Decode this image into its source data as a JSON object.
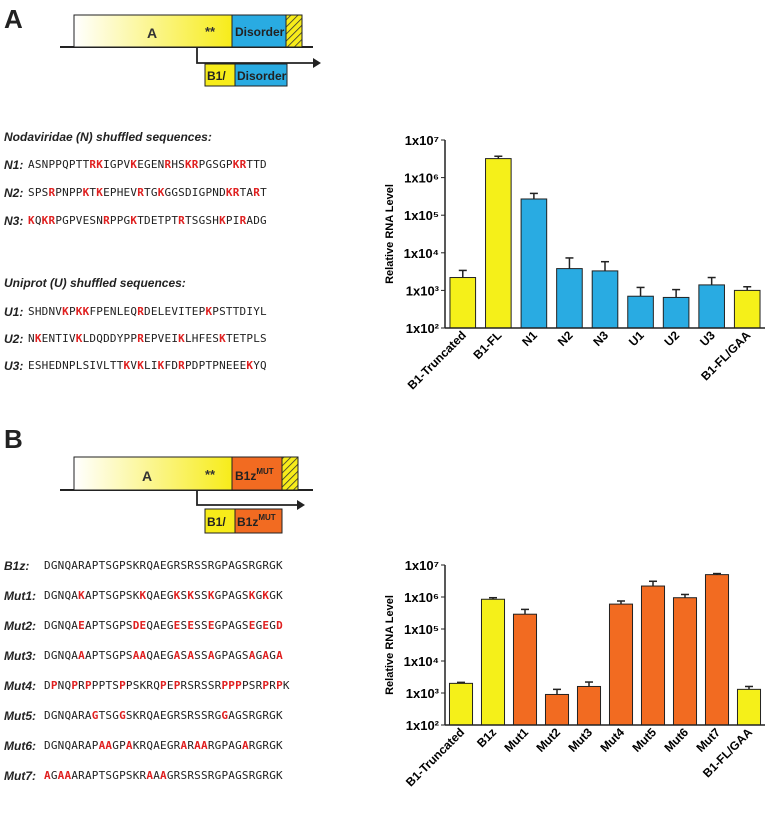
{
  "panel_a": {
    "letter": "A",
    "diagram": {
      "domain_a": "A",
      "stars": "**",
      "disorder": "Disorder",
      "b1_prefix": "B1/",
      "b1_disorder": "Disorder"
    },
    "group1_title": "Nodaviridae (N) shuffled sequences:",
    "group1": [
      {
        "label": "N1:",
        "segments": [
          [
            "ASNPPQPTT",
            0
          ],
          [
            "RK",
            1
          ],
          [
            "IGPV",
            0
          ],
          [
            "K",
            1
          ],
          [
            "EGEN",
            0
          ],
          [
            "R",
            1
          ],
          [
            "HS",
            0
          ],
          [
            "KR",
            1
          ],
          [
            "PGSGP",
            0
          ],
          [
            "KR",
            1
          ],
          [
            "TTD",
            0
          ]
        ]
      },
      {
        "label": "N2:",
        "segments": [
          [
            "SPS",
            0
          ],
          [
            "R",
            1
          ],
          [
            "PNPP",
            0
          ],
          [
            "K",
            1
          ],
          [
            "T",
            0
          ],
          [
            "K",
            1
          ],
          [
            "EPHEV",
            0
          ],
          [
            "R",
            1
          ],
          [
            "TG",
            0
          ],
          [
            "K",
            1
          ],
          [
            "GGSDIGPND",
            0
          ],
          [
            "KR",
            1
          ],
          [
            "TA",
            0
          ],
          [
            "R",
            1
          ],
          [
            "T",
            0
          ]
        ]
      },
      {
        "label": "N3:",
        "segments": [
          [
            "K",
            1
          ],
          [
            "Q",
            0
          ],
          [
            "KR",
            1
          ],
          [
            "PGPVESN",
            0
          ],
          [
            "R",
            1
          ],
          [
            "PPG",
            0
          ],
          [
            "K",
            1
          ],
          [
            "TDETPT",
            0
          ],
          [
            "R",
            1
          ],
          [
            "TSGSH",
            0
          ],
          [
            "K",
            1
          ],
          [
            "PI",
            0
          ],
          [
            "R",
            1
          ],
          [
            "ADG",
            0
          ]
        ]
      }
    ],
    "group2_title": "Uniprot (U) shuffled sequences:",
    "group2": [
      {
        "label": "U1:",
        "segments": [
          [
            "SHDNV",
            0
          ],
          [
            "K",
            1
          ],
          [
            "P",
            0
          ],
          [
            "KK",
            1
          ],
          [
            "FPENLEQ",
            0
          ],
          [
            "R",
            1
          ],
          [
            "DELEVITEP",
            0
          ],
          [
            "K",
            1
          ],
          [
            "PSTTDIYL",
            0
          ]
        ]
      },
      {
        "label": "U2:",
        "segments": [
          [
            "N",
            0
          ],
          [
            "K",
            1
          ],
          [
            "ENTIV",
            0
          ],
          [
            "K",
            1
          ],
          [
            "LDQDDYPP",
            0
          ],
          [
            "R",
            1
          ],
          [
            "EPVEI",
            0
          ],
          [
            "K",
            1
          ],
          [
            "LHFES",
            0
          ],
          [
            "K",
            1
          ],
          [
            "TETPLS",
            0
          ]
        ]
      },
      {
        "label": "U3:",
        "segments": [
          [
            "ESHEDNPLSIVLTT",
            0
          ],
          [
            "K",
            1
          ],
          [
            "V",
            0
          ],
          [
            "K",
            1
          ],
          [
            "LI",
            0
          ],
          [
            "K",
            1
          ],
          [
            "FD",
            0
          ],
          [
            "R",
            1
          ],
          [
            "PDPTPNEEE",
            0
          ],
          [
            "K",
            1
          ],
          [
            "YQ",
            0
          ]
        ]
      }
    ]
  },
  "panel_b": {
    "letter": "B",
    "diagram": {
      "domain_a": "A",
      "stars": "**",
      "b1z": "B1z",
      "mut_sup": "MUT",
      "b1_prefix": "B1/",
      "b1z_bottom": "B1z",
      "mut_sup_bottom": "MUT"
    },
    "rows": [
      {
        "label": "B1z:",
        "segments": [
          [
            "DGNQARAPTSGPSKRQAEGRSRSSRGPAGSRGRGK",
            0
          ]
        ]
      },
      {
        "label": "Mut1:",
        "segments": [
          [
            "DGNQA",
            0
          ],
          [
            "K",
            1
          ],
          [
            "APTSGPSK",
            0
          ],
          [
            "K",
            1
          ],
          [
            "QAEG",
            0
          ],
          [
            "K",
            1
          ],
          [
            "S",
            0
          ],
          [
            "K",
            1
          ],
          [
            "SS",
            0
          ],
          [
            "K",
            1
          ],
          [
            "GPAGS",
            0
          ],
          [
            "K",
            1
          ],
          [
            "G",
            0
          ],
          [
            "K",
            1
          ],
          [
            "GK",
            0
          ]
        ]
      },
      {
        "label": "Mut2:",
        "segments": [
          [
            "DGNQA",
            0
          ],
          [
            "E",
            1
          ],
          [
            "APTSGPS",
            0
          ],
          [
            "DE",
            1
          ],
          [
            "QAEG",
            0
          ],
          [
            "E",
            1
          ],
          [
            "S",
            0
          ],
          [
            "E",
            1
          ],
          [
            "SS",
            0
          ],
          [
            "E",
            1
          ],
          [
            "GPAGS",
            0
          ],
          [
            "E",
            1
          ],
          [
            "G",
            0
          ],
          [
            "E",
            1
          ],
          [
            "G",
            0
          ],
          [
            "D",
            1
          ]
        ]
      },
      {
        "label": "Mut3:",
        "segments": [
          [
            "DGNQA",
            0
          ],
          [
            "A",
            1
          ],
          [
            "APTSGPS",
            0
          ],
          [
            "AA",
            1
          ],
          [
            "QAEG",
            0
          ],
          [
            "A",
            1
          ],
          [
            "S",
            0
          ],
          [
            "A",
            1
          ],
          [
            "SS",
            0
          ],
          [
            "A",
            1
          ],
          [
            "GPAGS",
            0
          ],
          [
            "A",
            1
          ],
          [
            "G",
            0
          ],
          [
            "A",
            1
          ],
          [
            "G",
            0
          ],
          [
            "A",
            1
          ]
        ]
      },
      {
        "label": "Mut4:",
        "segments": [
          [
            "D",
            0
          ],
          [
            "P",
            1
          ],
          [
            "NQ",
            0
          ],
          [
            "P",
            1
          ],
          [
            "R",
            0
          ],
          [
            "P",
            1
          ],
          [
            "PPTS",
            0
          ],
          [
            "P",
            1
          ],
          [
            "PSKRQ",
            0
          ],
          [
            "P",
            1
          ],
          [
            "E",
            0
          ],
          [
            "P",
            1
          ],
          [
            "RSRSSR",
            0
          ],
          [
            "PPP",
            1
          ],
          [
            "PSR",
            0
          ],
          [
            "P",
            1
          ],
          [
            "R",
            0
          ],
          [
            "P",
            1
          ],
          [
            "K",
            0
          ]
        ]
      },
      {
        "label": "Mut5:",
        "segments": [
          [
            "DGNQARA",
            0
          ],
          [
            "G",
            1
          ],
          [
            "TSG",
            0
          ],
          [
            "G",
            1
          ],
          [
            "SKRQAEGRSRSSRG",
            0
          ],
          [
            "G",
            1
          ],
          [
            "AGSRGRGK",
            0
          ]
        ]
      },
      {
        "label": "Mut6:",
        "segments": [
          [
            "DGNQARAP",
            0
          ],
          [
            "AA",
            1
          ],
          [
            "GP",
            0
          ],
          [
            "A",
            1
          ],
          [
            "KRQAEGR",
            0
          ],
          [
            "A",
            1
          ],
          [
            "R",
            0
          ],
          [
            "AA",
            1
          ],
          [
            "RGPAG",
            0
          ],
          [
            "A",
            1
          ],
          [
            "RGRGK",
            0
          ]
        ]
      },
      {
        "label": "Mut7:",
        "segments": [
          [
            "A",
            1
          ],
          [
            "G",
            0
          ],
          [
            "AA",
            1
          ],
          [
            "ARAPTSGPSKR",
            0
          ],
          [
            "A",
            1
          ],
          [
            "A",
            0
          ],
          [
            "A",
            1
          ],
          [
            "GRSRSSRGPAGSRGRGK",
            0
          ]
        ]
      }
    ]
  },
  "chart_data": [
    {
      "type": "bar",
      "ylabel": "Relative RNA Level",
      "yscale": "log",
      "ylim": [
        100,
        10000000
      ],
      "yticks": [
        "1x10²",
        "1x10³",
        "1x10⁴",
        "1x10⁵",
        "1x10⁶",
        "1x10⁷"
      ],
      "categories": [
        "B1-Truncated",
        "B1-FL",
        "N1",
        "N2",
        "N3",
        "U1",
        "U2",
        "U3",
        "B1-FL/GAA"
      ],
      "values": [
        2200,
        3200000,
        270000,
        3800,
        3300,
        700,
        650,
        1400,
        1000
      ],
      "errors": [
        1200,
        500000,
        110000,
        3500,
        2500,
        500,
        400,
        800,
        250
      ],
      "colors": [
        "#f5f019",
        "#f5f019",
        "#29abe2",
        "#29abe2",
        "#29abe2",
        "#29abe2",
        "#29abe2",
        "#29abe2",
        "#f5f019"
      ]
    },
    {
      "type": "bar",
      "ylabel": "Relative RNA Level",
      "yscale": "log",
      "ylim": [
        100,
        10000000
      ],
      "yticks": [
        "1x10²",
        "1x10³",
        "1x10⁴",
        "1x10⁵",
        "1x10⁶",
        "1x10⁷"
      ],
      "categories": [
        "B1-Truncated",
        "B1z",
        "Mut1",
        "Mut2",
        "Mut3",
        "Mut4",
        "Mut5",
        "Mut6",
        "Mut7",
        "B1-FL/GAA"
      ],
      "values": [
        2000,
        850000,
        290000,
        900,
        1600,
        600000,
        2200000,
        950000,
        5000000,
        1300
      ],
      "errors": [
        150,
        100000,
        120000,
        400,
        600,
        150000,
        900000,
        250000,
        400000,
        300
      ],
      "colors": [
        "#f5f019",
        "#f5f019",
        "#f26b21",
        "#f26b21",
        "#f26b21",
        "#f26b21",
        "#f26b21",
        "#f26b21",
        "#f26b21",
        "#f5f019"
      ]
    }
  ]
}
